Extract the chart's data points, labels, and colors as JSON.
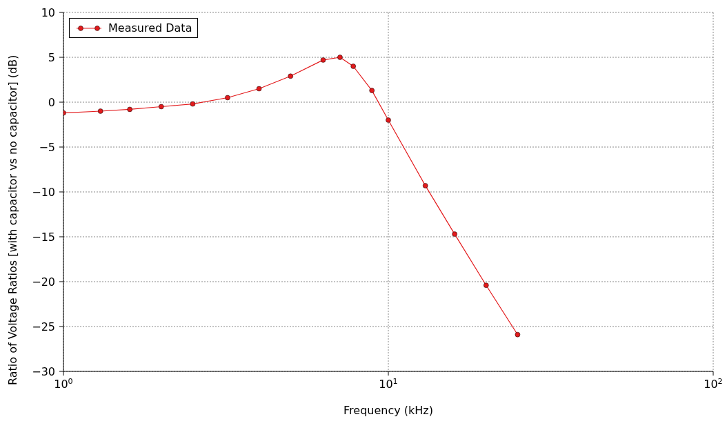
{
  "chart_data": {
    "type": "line",
    "xlabel": "Frequency (kHz)",
    "ylabel": "Ratio of Voltage Ratios [with capacitor vs no capacitor] (dB)",
    "x": [
      1.0,
      1.3,
      1.6,
      2.0,
      2.5,
      3.2,
      4.0,
      5.0,
      6.3,
      7.1,
      7.8,
      8.9,
      10,
      13,
      16,
      20,
      25
    ],
    "series": [
      {
        "name": "Measured Data",
        "color": "#e31a1c",
        "values": [
          -1.2,
          -1.0,
          -0.8,
          -0.5,
          -0.2,
          0.5,
          1.5,
          2.9,
          4.7,
          5.0,
          4.0,
          1.3,
          -2.0,
          -9.3,
          -14.7,
          -20.4,
          -25.9
        ]
      }
    ],
    "log": "x",
    "xlim": [
      1,
      100
    ],
    "xticks": [
      {
        "value": 1,
        "label": "10$^{0}$"
      },
      {
        "value": 10,
        "label": "10$^{1}$"
      },
      {
        "value": 100,
        "label": "10$^{2}$"
      }
    ],
    "ylim": [
      -30,
      10
    ],
    "yticks": [
      -30,
      -25,
      -20,
      -15,
      -10,
      -5,
      0,
      5,
      10
    ],
    "grid": true,
    "legend": "top left",
    "marker": "circle",
    "line_style": "solid"
  }
}
